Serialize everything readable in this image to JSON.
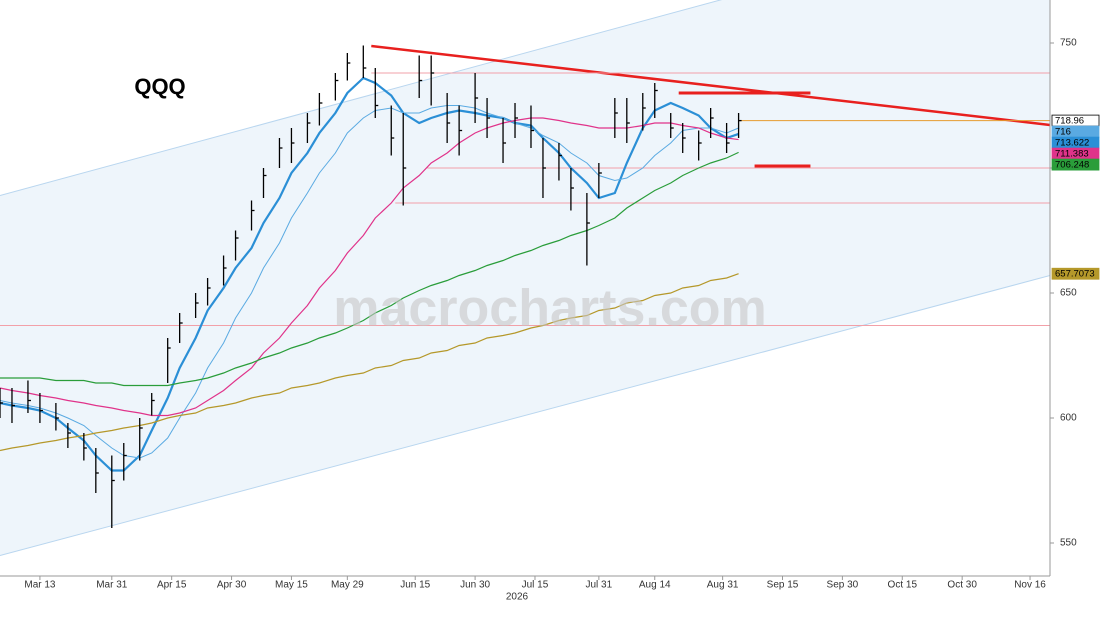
{
  "chart_data": {
    "type": "ohlc",
    "title": "QQQ",
    "watermark": "macrocharts.com",
    "x_label": "2026",
    "x": [
      "2026-03-03",
      "2026-03-06",
      "2026-03-10",
      "2026-03-13",
      "2026-03-17",
      "2026-03-20",
      "2026-03-24",
      "2026-03-27",
      "2026-03-31",
      "2026-04-03",
      "2026-04-07",
      "2026-04-10",
      "2026-04-14",
      "2026-04-17",
      "2026-04-21",
      "2026-04-24",
      "2026-04-28",
      "2026-05-01",
      "2026-05-05",
      "2026-05-08",
      "2026-05-12",
      "2026-05-15",
      "2026-05-19",
      "2026-05-22",
      "2026-05-26",
      "2026-05-29",
      "2026-06-02",
      "2026-06-05",
      "2026-06-09",
      "2026-06-12",
      "2026-06-16",
      "2026-06-19",
      "2026-06-23",
      "2026-06-26",
      "2026-06-30",
      "2026-07-03",
      "2026-07-07",
      "2026-07-10",
      "2026-07-14",
      "2026-07-17",
      "2026-07-21",
      "2026-07-24",
      "2026-07-28",
      "2026-07-31",
      "2026-08-04",
      "2026-08-07",
      "2026-08-11",
      "2026-08-14",
      "2026-08-18",
      "2026-08-21",
      "2026-08-25",
      "2026-08-28",
      "2026-09-01",
      "2026-09-04"
    ],
    "high": [
      612,
      612,
      615,
      610,
      606,
      598,
      594,
      588,
      585,
      590,
      600,
      610,
      632,
      642,
      650,
      656,
      665,
      675,
      687,
      700,
      712,
      716,
      722,
      730,
      738,
      746,
      749,
      740,
      725,
      722,
      745,
      745,
      730,
      725,
      738,
      728,
      720,
      726,
      725,
      712,
      710,
      700,
      690,
      702,
      728,
      728,
      730,
      734,
      722,
      718,
      715,
      724,
      718,
      722
    ],
    "low": [
      600,
      598,
      602,
      598,
      595,
      588,
      583,
      570,
      556,
      575,
      583,
      601,
      614,
      630,
      640,
      645,
      653,
      663,
      675,
      688,
      700,
      702,
      710,
      717,
      727,
      735,
      736,
      720,
      705,
      685,
      728,
      725,
      710,
      705,
      718,
      712,
      702,
      712,
      708,
      688,
      695,
      683,
      661,
      688,
      712,
      710,
      715,
      720,
      712,
      706,
      703,
      712,
      706,
      712
    ],
    "close": [
      606,
      605,
      607,
      603,
      600,
      594,
      588,
      578,
      575,
      585,
      596,
      607,
      628,
      638,
      646,
      652,
      660,
      672,
      683,
      697,
      708,
      710,
      718,
      726,
      735,
      742,
      740,
      725,
      712,
      700,
      735,
      738,
      718,
      715,
      728,
      720,
      710,
      720,
      715,
      700,
      705,
      692,
      678,
      698,
      722,
      718,
      724,
      731,
      716,
      712,
      710,
      720,
      710,
      718.96
    ],
    "color": "#000000",
    "last_price_line": true,
    "last_price_color": "#e69a2e",
    "series": [
      {
        "color": "#2b8fd6",
        "width": 2.2,
        "values": [
          606,
          605,
          604,
          603,
          600,
          596,
          591,
          585,
          579,
          579,
          585,
          595,
          608,
          620,
          632,
          643,
          652,
          660,
          668,
          678,
          688,
          698,
          706,
          714,
          722,
          730,
          736,
          734,
          729,
          722,
          718,
          720,
          722,
          723,
          722,
          721,
          720,
          718,
          717,
          712,
          706,
          700,
          694,
          688,
          690,
          702,
          716,
          723,
          726,
          724,
          721,
          716,
          712,
          713.622
        ]
      },
      {
        "color": "#5aaae2",
        "width": 1,
        "values": [
          607,
          606,
          605,
          604,
          602,
          600,
          597,
          593,
          588,
          585,
          584,
          586,
          592,
          600,
          610,
          620,
          630,
          640,
          650,
          660,
          670,
          680,
          690,
          698,
          706,
          714,
          720,
          723,
          724,
          722,
          722,
          724,
          725,
          725,
          724,
          722,
          720,
          718,
          716,
          713,
          710,
          706,
          702,
          697,
          695,
          696,
          700,
          705,
          710,
          715,
          716,
          716,
          714,
          716
        ]
      },
      {
        "color": "#e0338a",
        "width": 1.2,
        "values": [
          612,
          611,
          610,
          609,
          608,
          607,
          606,
          605,
          604,
          603,
          602,
          601,
          601,
          602,
          604,
          607,
          611,
          615,
          620,
          626,
          632,
          638,
          645,
          652,
          659,
          666,
          673,
          680,
          686,
          692,
          697,
          702,
          706,
          710,
          714,
          716,
          718,
          719,
          720,
          720,
          719,
          718,
          717,
          716,
          716,
          716,
          717,
          718,
          718,
          717,
          716,
          714,
          712,
          711.383
        ]
      },
      {
        "color": "#2a9d3a",
        "width": 1.2,
        "values": [
          616,
          616,
          616,
          616,
          615,
          615,
          615,
          614,
          614,
          613,
          613,
          613,
          613,
          614,
          615,
          616,
          618,
          620,
          622,
          624,
          626,
          628,
          630,
          632,
          634,
          636,
          639,
          642,
          645,
          648,
          651,
          653,
          655,
          657,
          659,
          661,
          663,
          665,
          667,
          669,
          671,
          673,
          675,
          677,
          680,
          684,
          688,
          691,
          694,
          697,
          700,
          702,
          704,
          706.248
        ]
      },
      {
        "color": "#b5982a",
        "width": 1.2,
        "values": [
          587,
          588,
          589,
          590,
          591,
          592,
          593,
          594,
          595,
          596,
          597,
          598,
          600,
          601,
          602,
          604,
          605,
          606,
          608,
          609,
          610,
          612,
          613,
          614,
          616,
          617,
          618,
          620,
          621,
          623,
          624,
          626,
          627,
          629,
          630,
          632,
          633,
          634,
          636,
          637,
          639,
          640,
          641,
          643,
          644,
          646,
          647,
          649,
          650,
          652,
          653,
          655,
          656,
          657.7073
        ]
      }
    ],
    "channel": {
      "x": [
        "2026-03-03",
        "2026-11-21"
      ],
      "upper": [
        689,
        803
      ],
      "lower": [
        545,
        657
      ],
      "fill": "#eef5fb",
      "color": "#b9d6ef"
    },
    "lines": [
      {
        "x": [
          "2026-06-04",
          "2026-11-21"
        ],
        "y": [
          748.8,
          717.2
        ],
        "color": "#e8201e",
        "width": 2.5
      },
      {
        "x": [
          "2026-08-20",
          "2026-09-22"
        ],
        "y": [
          730,
          730
        ],
        "color": "#e8201e",
        "width": 3
      },
      {
        "x": [
          "2026-09-08",
          "2026-09-22"
        ],
        "y": [
          700.8,
          700.8
        ],
        "color": "#e8201e",
        "width": 3
      },
      {
        "x": [
          "2026-06-04",
          "2026-11-21"
        ],
        "y": [
          738,
          738
        ],
        "color": "#f2a0a8",
        "width": 1
      },
      {
        "x": [
          "2026-06-18",
          "2026-11-21"
        ],
        "y": [
          700,
          700
        ],
        "color": "#f2a0a8",
        "width": 1
      },
      {
        "x": [
          "2026-06-10",
          "2026-11-21"
        ],
        "y": [
          686,
          686
        ],
        "color": "#f2a0a8",
        "width": 1
      },
      {
        "x": [
          "2026-03-03",
          "2026-11-21"
        ],
        "y": [
          637,
          637
        ],
        "color": "#f2a0a8",
        "width": 1
      }
    ],
    "xlim": [
      "2026-03-03",
      "2026-11-21"
    ],
    "xticks": [
      {
        "value": "2026-03-13",
        "label": "Mar 13"
      },
      {
        "value": "2026-03-31",
        "label": "Mar 31"
      },
      {
        "value": "2026-04-15",
        "label": "Apr 15"
      },
      {
        "value": "2026-04-30",
        "label": "Apr 30"
      },
      {
        "value": "2026-05-15",
        "label": "May 15"
      },
      {
        "value": "2026-05-29",
        "label": "May 29"
      },
      {
        "value": "2026-06-15",
        "label": "Jun 15"
      },
      {
        "value": "2026-06-30",
        "label": "Jun 30"
      },
      {
        "value": "2026-07-15",
        "label": "Jul 15"
      },
      {
        "value": "2026-07-31",
        "label": "Jul 31"
      },
      {
        "value": "2026-08-14",
        "label": "Aug 14"
      },
      {
        "value": "2026-08-31",
        "label": "Aug 31"
      },
      {
        "value": "2026-09-15",
        "label": "Sep 15"
      },
      {
        "value": "2026-09-30",
        "label": "Sep 30"
      },
      {
        "value": "2026-10-15",
        "label": "Oct 15"
      },
      {
        "value": "2026-10-30",
        "label": "Oct 30"
      },
      {
        "value": "2026-11-16",
        "label": "Nov 16"
      }
    ],
    "ylim": [
      536.8,
      767.2
    ],
    "yticks": [
      550,
      600,
      650,
      700,
      750
    ]
  }
}
